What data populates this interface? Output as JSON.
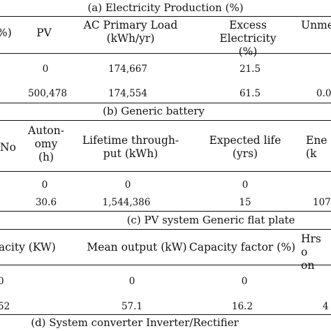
{
  "section_a": {
    "caption": "(a) Electricity Production (%)",
    "headers": [
      "%)",
      "PV",
      "AC Primary Load\n(kWh/yr)",
      "Excess Electricity\n(%)",
      "Unme"
    ],
    "rows": [
      [
        "",
        "0",
        "174,667",
        "21.5",
        ""
      ],
      [
        "",
        "500,478",
        "174,554",
        "61.5",
        "0.0"
      ]
    ]
  },
  "section_b": {
    "caption": "(b) Generic battery",
    "headers": [
      "No",
      "Auton-\nomy\n(h)",
      "Lifetime through-\nput (kWh)",
      "Expected life\n(yrs)",
      "Ene\n(k"
    ],
    "rows": [
      [
        "",
        "0",
        "0",
        "0",
        ""
      ],
      [
        "",
        "30.6",
        "1,544,386",
        "15",
        "107"
      ]
    ]
  },
  "section_c": {
    "caption": "(c) PV system Generic flat plate",
    "headers": [
      "acity (KW)",
      "Mean output (kW)",
      "Capacity factor (%)",
      "Hrs o\non"
    ],
    "rows": [
      [
        "0",
        "0",
        "0",
        ""
      ],
      [
        "52",
        "57.1",
        "16.2",
        "4"
      ]
    ]
  },
  "section_d": {
    "caption": "(d) System converter Inverter/Rectifier"
  }
}
